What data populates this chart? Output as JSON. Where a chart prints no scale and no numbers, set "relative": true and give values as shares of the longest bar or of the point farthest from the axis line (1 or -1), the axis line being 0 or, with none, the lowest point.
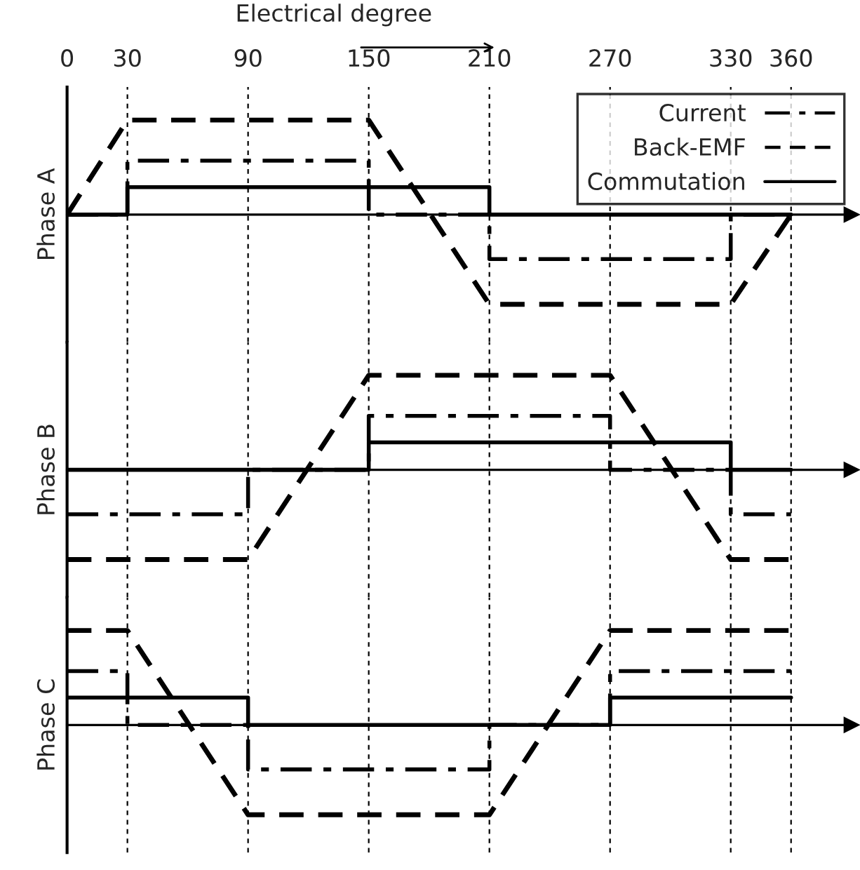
{
  "chart_data": [
    {
      "type": "line",
      "relative": true,
      "xlabel": "Electrical degree",
      "ylabel": "Phase A",
      "xlim": [
        0,
        390
      ],
      "xticks": [
        0,
        30,
        90,
        150,
        210,
        270,
        330,
        360
      ],
      "grid": "x",
      "legend": "top right",
      "tick_labels": "x",
      "series": [
        {
          "name": "Current",
          "color": "#000000",
          "line_style": "dashdot",
          "x": [
            0,
            30,
            30,
            150,
            150,
            210,
            210,
            330,
            330,
            360
          ],
          "values": [
            0,
            0,
            0.57,
            0.57,
            0,
            0,
            -0.47,
            -0.47,
            0,
            0
          ]
        },
        {
          "name": "Back-EMF",
          "color": "#000000",
          "line_style": "dashed",
          "x": [
            0,
            30,
            150,
            210,
            330,
            360
          ],
          "values": [
            0,
            1,
            1,
            -0.95,
            -0.95,
            0
          ]
        },
        {
          "name": "Commutation",
          "color": "#000000",
          "line_style": "solid",
          "x": [
            0,
            30,
            30,
            210,
            210,
            360
          ],
          "values": [
            0,
            0,
            0.29,
            0.29,
            0,
            0
          ]
        }
      ]
    },
    {
      "type": "line",
      "relative": true,
      "ylabel": "Phase B",
      "xlim": [
        0,
        390
      ],
      "grid": "x",
      "tick_labels": false,
      "series": [
        {
          "color": "#000000",
          "line_style": "dashdot",
          "x": [
            0,
            90,
            90,
            150,
            150,
            270,
            270,
            330,
            330,
            360
          ],
          "values": [
            -0.47,
            -0.47,
            0,
            0,
            0.57,
            0.57,
            0,
            0,
            -0.47,
            -0.47
          ]
        },
        {
          "color": "#000000",
          "line_style": "dashed",
          "x": [
            0,
            90,
            150,
            270,
            330,
            360
          ],
          "values": [
            -0.95,
            -0.95,
            1,
            1,
            -0.95,
            -0.95
          ]
        },
        {
          "color": "#000000",
          "line_style": "solid",
          "x": [
            0,
            150,
            150,
            330,
            330,
            360
          ],
          "values": [
            0,
            0,
            0.29,
            0.29,
            0,
            0
          ]
        }
      ]
    },
    {
      "type": "line",
      "relative": true,
      "ylabel": "Phase C",
      "xlim": [
        0,
        390
      ],
      "grid": "x",
      "tick_labels": false,
      "series": [
        {
          "color": "#000000",
          "line_style": "dashdot",
          "x": [
            0,
            30,
            30,
            90,
            90,
            210,
            210,
            270,
            270,
            360
          ],
          "values": [
            0.57,
            0.57,
            0,
            0,
            -0.47,
            -0.47,
            0,
            0,
            0.57,
            0.57
          ]
        },
        {
          "color": "#000000",
          "line_style": "dashed",
          "x": [
            0,
            30,
            90,
            210,
            270,
            360
          ],
          "values": [
            1,
            1,
            -0.95,
            -0.95,
            1,
            1
          ]
        },
        {
          "color": "#000000",
          "line_style": "solid",
          "x": [
            0,
            90,
            90,
            270,
            270,
            360
          ],
          "values": [
            0.29,
            0.29,
            0,
            0,
            0.29,
            0.29
          ]
        }
      ]
    }
  ]
}
